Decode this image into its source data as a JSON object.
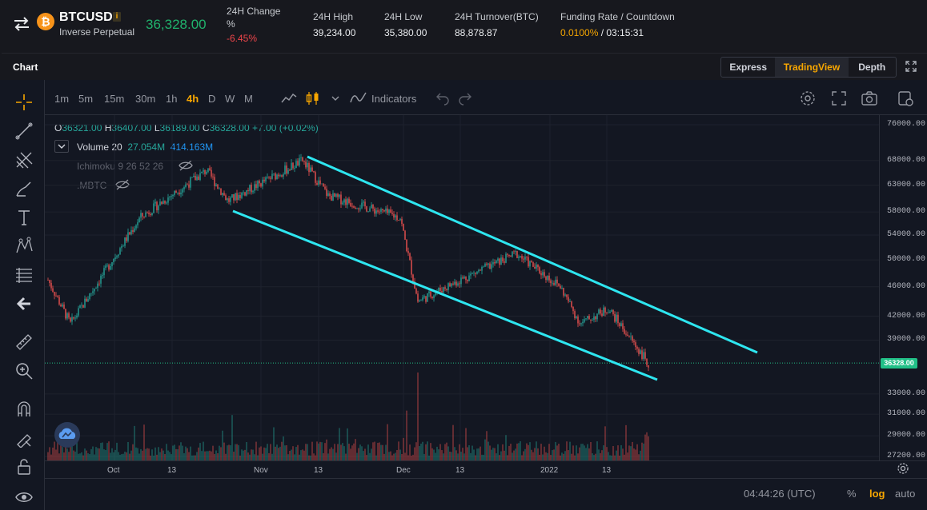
{
  "header": {
    "symbol": "BTCUSD",
    "coin_glyph": "₿",
    "info_glyph": "i",
    "contract_type": "Inverse Perpetual",
    "last_price": "36,328.00",
    "stats": {
      "change_label_1": "24H Change",
      "change_label_2": "%",
      "change_value": "-6.45%",
      "high_label": "24H High",
      "high_value": "39,234.00",
      "low_label": "24H Low",
      "low_value": "35,380.00",
      "turnover_label": "24H Turnover(BTC)",
      "turnover_value": "88,878.87",
      "funding_label": "Funding Rate / Countdown",
      "funding_rate": "0.0100%",
      "countdown": " / 03:15:31"
    }
  },
  "panel": {
    "title": "Chart",
    "views": [
      "Express",
      "TradingView",
      "Depth"
    ],
    "active_view": "TradingView"
  },
  "toolbar": {
    "timeframes": [
      "1m",
      "5m",
      "15m",
      "30m",
      "1h",
      "4h",
      "D",
      "W",
      "M"
    ],
    "active_timeframe": "4h",
    "indicators_label": "Indicators"
  },
  "legend": {
    "o_label": "O",
    "o": "36321.00",
    "h_label": "H",
    "h": "36407.00",
    "l_label": "L",
    "l": "36189.00",
    "c_label": "C",
    "c": "36328.00",
    "change": "+7.00 (+0.02%)",
    "volume_label": "Volume 20",
    "volume_1": "27.054M",
    "volume_2": "414.163M",
    "ichimoku": "Ichimoku 9 26 52 26",
    "mbtc": ".MBTC"
  },
  "chart_data": {
    "type": "candlestick",
    "symbol": "BTCUSD",
    "interval": "4h",
    "y_scale": "log",
    "y_ticks": [
      "76000.00",
      "68000.00",
      "63000.00",
      "58000.00",
      "54000.00",
      "50000.00",
      "46000.00",
      "42000.00",
      "39000.00",
      "36328.00",
      "33000.00",
      "31000.00",
      "29000.00",
      "27200.00"
    ],
    "x_ticks": [
      "Oct",
      "13",
      "Nov",
      "13",
      "Dec",
      "13",
      "2022",
      "13"
    ],
    "last_price": 36328,
    "approx_path": [
      {
        "t": "late Sep",
        "price": 47000
      },
      {
        "t": "early Oct",
        "price": 41000
      },
      {
        "t": "mid Oct",
        "price": 57000
      },
      {
        "t": "Oct 20",
        "price": 66000
      },
      {
        "t": "late Oct",
        "price": 60000
      },
      {
        "t": "Nov 10",
        "price": 68000
      },
      {
        "t": "mid Nov",
        "price": 61000
      },
      {
        "t": "late Nov",
        "price": 57000
      },
      {
        "t": "Dec 4",
        "price": 44000
      },
      {
        "t": "mid Dec",
        "price": 47000
      },
      {
        "t": "late Dec",
        "price": 51000
      },
      {
        "t": "early Jan",
        "price": 46000
      },
      {
        "t": "Jan 10",
        "price": 41000
      },
      {
        "t": "mid Jan",
        "price": 43000
      },
      {
        "t": "Jan 21",
        "price": 36328
      }
    ],
    "channel_lines": 2
  },
  "axis": {
    "time": "04:44:26 (UTC)",
    "pct": "%",
    "log": "log",
    "auto": "auto"
  },
  "colors": {
    "up": "#26a69a",
    "down": "#ef5350",
    "channel": "#2ee6f0",
    "accent": "#f7a600",
    "positive": "#20b26c",
    "negative": "#ef454a"
  }
}
